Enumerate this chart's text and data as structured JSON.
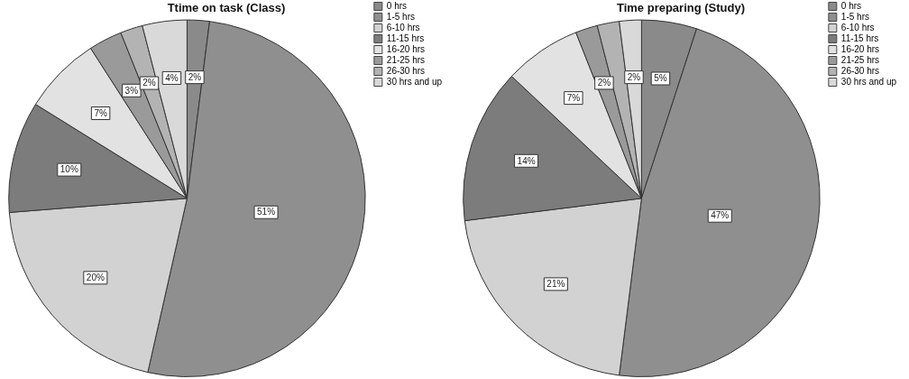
{
  "chart_data": [
    {
      "type": "pie",
      "title": "Ttime on task (Class)",
      "categories": [
        "0 hrs",
        "1-5 hrs",
        "6-10 hrs",
        "11-15 hrs",
        "16-20 hrs",
        "21-25 hrs",
        "26-30 hrs",
        "30 hrs and up"
      ],
      "values": [
        2,
        51,
        20,
        10,
        7,
        3,
        2,
        4
      ],
      "value_labels": [
        "2%",
        "51%",
        "20%",
        "10%",
        "7%",
        "3%",
        "2%",
        "4%"
      ],
      "colors": [
        "#8a8a8a",
        "#8f8f8f",
        "#d2d2d2",
        "#7c7c7c",
        "#e2e2e2",
        "#9a9a9a",
        "#b3b3b3",
        "#d9d9d9"
      ],
      "legend": "top right"
    },
    {
      "type": "pie",
      "title": "Time preparing (Study)",
      "categories": [
        "0 hrs",
        "1-5 hrs",
        "6-10 hrs",
        "11-15 hrs",
        "16-20 hrs",
        "21-25 hrs",
        "26-30 hrs",
        "30 hrs and up"
      ],
      "values": [
        5,
        47,
        21,
        14,
        7,
        2,
        2,
        2
      ],
      "value_labels": [
        "5%",
        "47%",
        "21%",
        "14%",
        "7%",
        "2%",
        null,
        "2%"
      ],
      "colors": [
        "#8a8a8a",
        "#8f8f8f",
        "#d2d2d2",
        "#7c7c7c",
        "#e2e2e2",
        "#9a9a9a",
        "#b3b3b3",
        "#d9d9d9"
      ],
      "legend": "top right"
    }
  ]
}
